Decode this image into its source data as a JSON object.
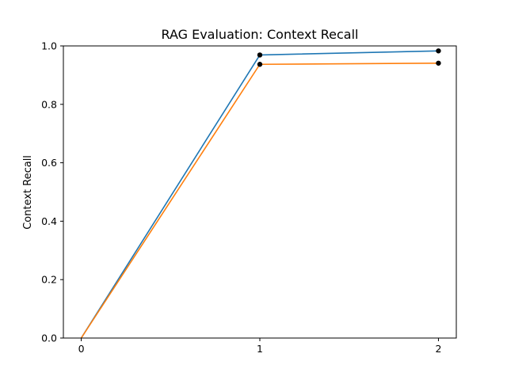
{
  "chart_data": {
    "type": "line",
    "title": "RAG Evaluation: Context Recall",
    "xlabel": "",
    "ylabel": "Context Recall",
    "x": [
      0,
      1,
      2
    ],
    "xticks": [
      "0",
      "1",
      "2"
    ],
    "xlim": [
      -0.1,
      2.1
    ],
    "ylim": [
      0,
      1.0
    ],
    "yticks": [
      "0.0",
      "0.2",
      "0.4",
      "0.6",
      "0.8",
      "1.0"
    ],
    "grid": false,
    "series": [
      {
        "values": [
          0.0,
          0.969,
          0.983
        ],
        "color": "#1f77b4"
      },
      {
        "values": [
          0.0,
          0.937,
          0.941
        ],
        "color": "#ff7f0e"
      }
    ],
    "marker_color": "#000000"
  }
}
